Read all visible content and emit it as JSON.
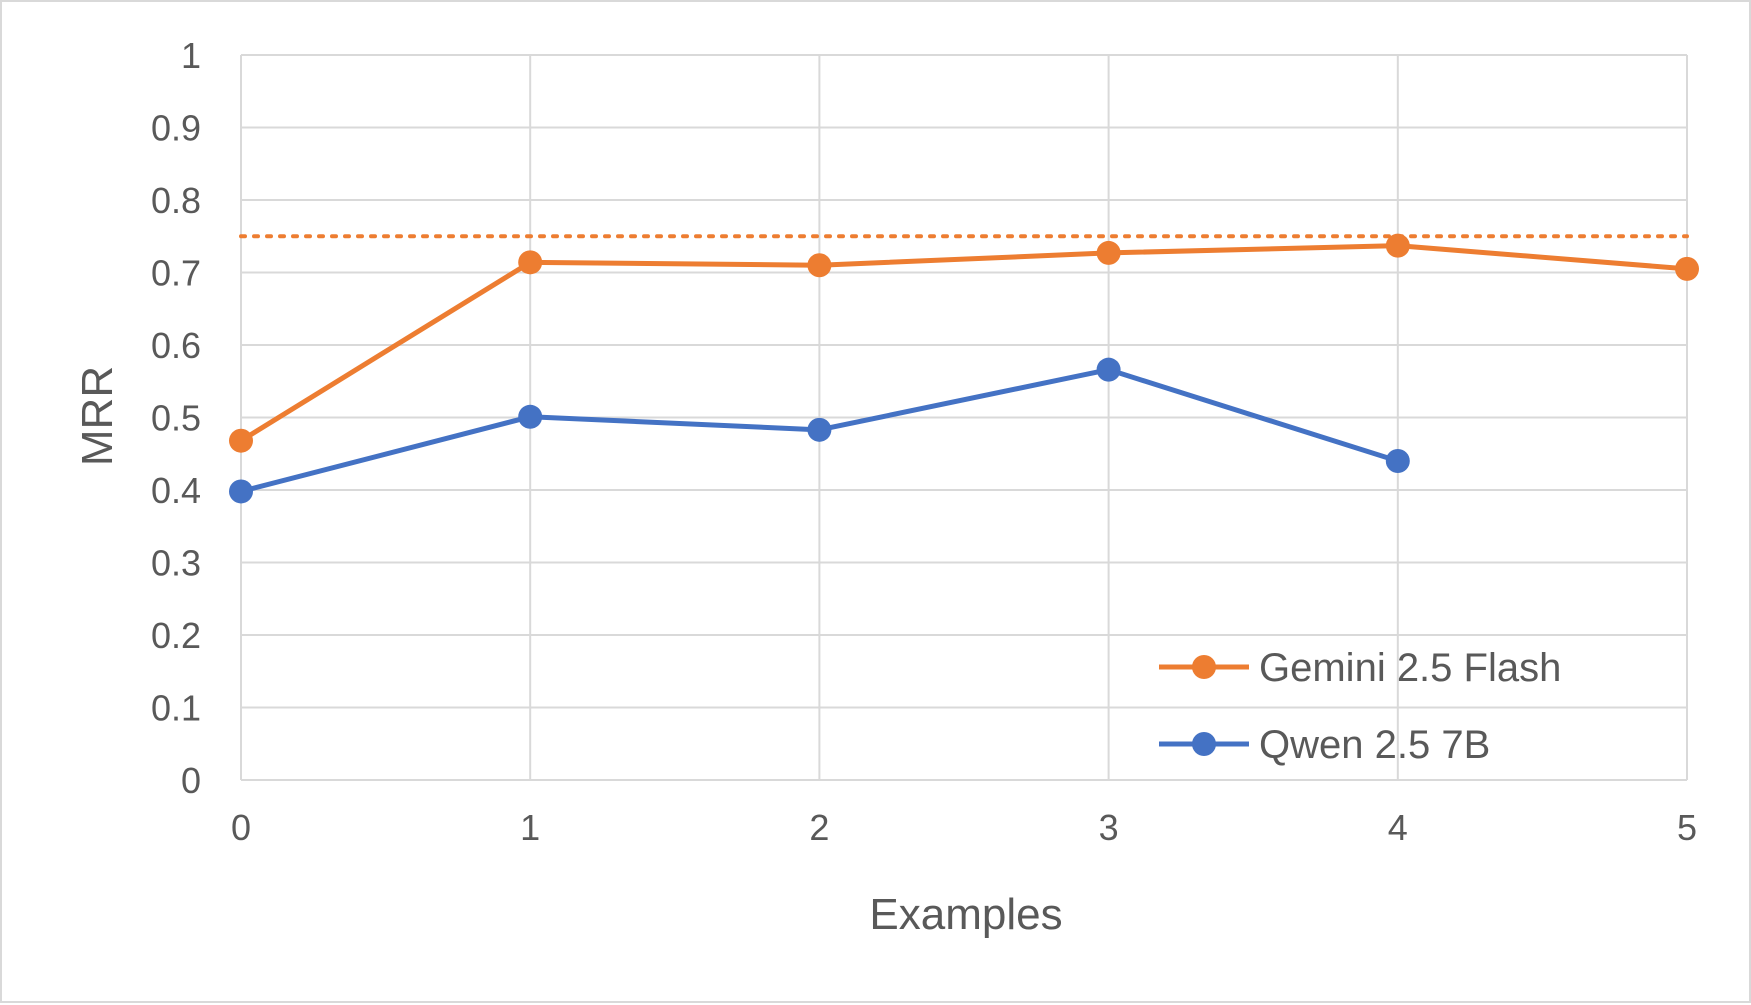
{
  "chart_data": {
    "type": "line",
    "title": "",
    "xlabel": "Examples",
    "ylabel": "MRR",
    "xlim": [
      0,
      5
    ],
    "ylim": [
      0,
      1
    ],
    "x_ticks": [
      "0",
      "1",
      "2",
      "3",
      "4",
      "5"
    ],
    "y_ticks": [
      "0",
      "0.1",
      "0.2",
      "0.3",
      "0.4",
      "0.5",
      "0.6",
      "0.7",
      "0.8",
      "0.9",
      "1"
    ],
    "grid": true,
    "legend_position": "bottom-right",
    "series": [
      {
        "name": "Gemini 2.5 Flash",
        "color": "#ED7D31",
        "x": [
          0,
          1,
          2,
          3,
          4,
          5
        ],
        "values": [
          0.468,
          0.714,
          0.71,
          0.727,
          0.737,
          0.705
        ]
      },
      {
        "name": "Qwen 2.5 7B",
        "color": "#4472C4",
        "x": [
          0,
          1,
          2,
          3,
          4
        ],
        "values": [
          0.398,
          0.501,
          0.483,
          0.566,
          0.44
        ]
      }
    ],
    "reference_line": {
      "y": 0.75,
      "color": "#ED7D31",
      "style": "dotted"
    }
  }
}
